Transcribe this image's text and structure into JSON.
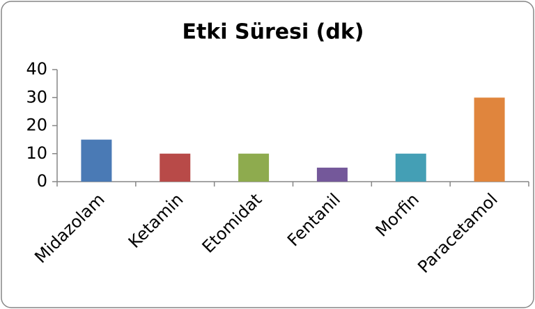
{
  "chart_data": {
    "type": "bar",
    "title": "Etki Süresi (dk)",
    "categories": [
      "Midazolam",
      "Ketamin",
      "Etomidat",
      "Fentanil",
      "Morfin",
      "Paracetamol"
    ],
    "values": [
      15,
      10,
      10,
      5,
      10,
      30
    ],
    "colors": [
      "#4a7ab5",
      "#b84a48",
      "#8eab4e",
      "#74589a",
      "#449fb5",
      "#e0853d"
    ],
    "ylim": [
      0,
      40
    ],
    "yticks": [
      0,
      10,
      20,
      30,
      40
    ],
    "grid": false
  }
}
